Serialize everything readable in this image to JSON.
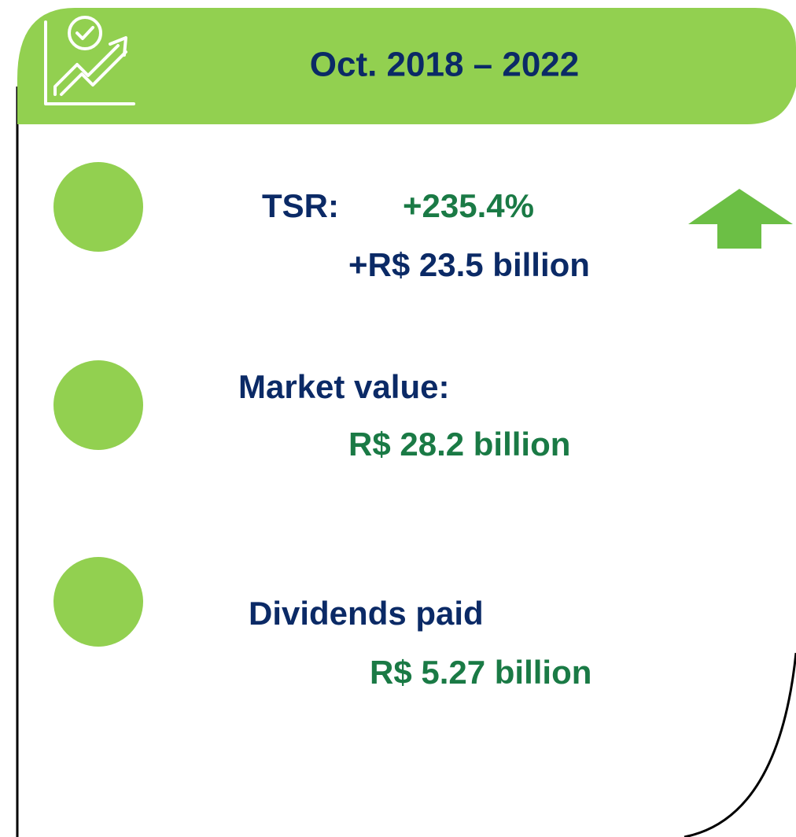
{
  "header": {
    "title": "Oct. 2018 – 2022"
  },
  "items": [
    {
      "label": "TSR:",
      "value": "+235.4%",
      "detail": "+R$ 23.5 billion"
    },
    {
      "label": "Market value:",
      "value": "R$ 28.2 billion"
    },
    {
      "label": "Dividends paid",
      "value": "R$ 5.27 billion"
    }
  ]
}
